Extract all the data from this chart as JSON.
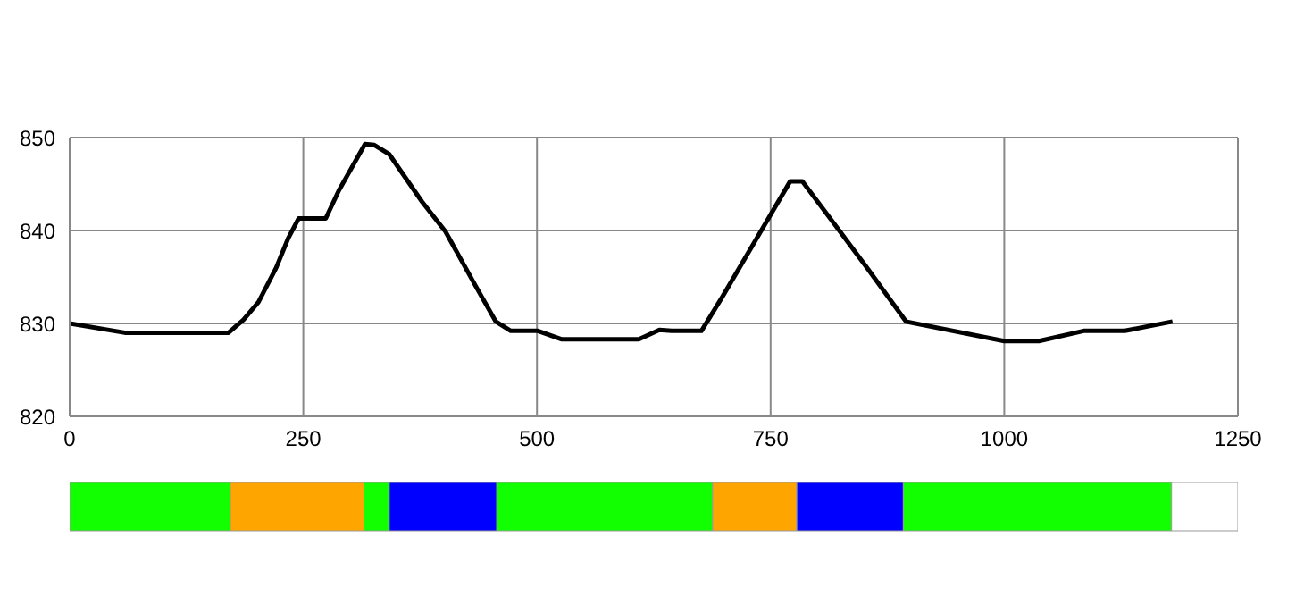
{
  "chart_data": [
    {
      "type": "line",
      "x": [
        0,
        59,
        170,
        186,
        202,
        221,
        234,
        245,
        274,
        288,
        316,
        326,
        342,
        377,
        402,
        434,
        456,
        472,
        501,
        526,
        609,
        631,
        644,
        676,
        698,
        771,
        784,
        822,
        853,
        895,
        1000,
        1037,
        1085,
        1129,
        1180
      ],
      "series": [
        {
          "color": "#000000",
          "values": [
            830,
            829,
            829,
            830.4,
            832.3,
            836,
            839.2,
            841.3,
            841.3,
            844.3,
            849.3,
            849.2,
            848.2,
            843.1,
            839.9,
            834.1,
            830.2,
            829.2,
            829.2,
            828.3,
            828.3,
            829.3,
            829.2,
            829.2,
            832.8,
            845.3,
            845.3,
            840.2,
            836,
            830.2,
            828.1,
            828.1,
            829.2,
            829.2,
            830.2
          ]
        }
      ],
      "xlim": [
        0,
        1250
      ],
      "ylim": [
        820,
        850
      ],
      "xticks": [
        0,
        250,
        500,
        750,
        1000,
        1250
      ],
      "yticks": [
        820,
        830,
        840,
        850
      ],
      "grid": true,
      "marker": "none",
      "line_style": "solid"
    },
    {
      "type": "bar",
      "orientation": "horizontal",
      "stacked": true,
      "categories": [
        null
      ],
      "series": [
        {
          "color": "#11ff00",
          "values": [
            172
          ]
        },
        {
          "color": "#ffa500",
          "values": [
            143
          ]
        },
        {
          "color": "#11ff00",
          "values": [
            27
          ]
        },
        {
          "color": "#0000ff",
          "values": [
            115
          ]
        },
        {
          "color": "#11ff00",
          "values": [
            231
          ]
        },
        {
          "color": "#ffa500",
          "values": [
            90
          ]
        },
        {
          "color": "#0000ff",
          "values": [
            114
          ]
        },
        {
          "color": "#11ff00",
          "values": [
            287
          ]
        },
        {
          "color": "#ffffff",
          "values": [
            71
          ]
        }
      ],
      "xlim": [
        0,
        1250
      ],
      "tick_labels": false
    }
  ]
}
